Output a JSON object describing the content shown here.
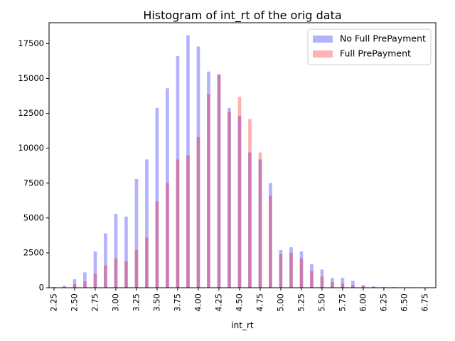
{
  "chart_data": {
    "type": "bar",
    "title": "Histogram of int_rt of the orig data",
    "xlabel": "int_rt",
    "ylabel": "",
    "xlim": [
      2.19,
      6.88
    ],
    "ylim": [
      0,
      19000
    ],
    "xticks": [
      "2.25",
      "2.50",
      "2.75",
      "3.00",
      "3.25",
      "3.50",
      "3.75",
      "4.00",
      "4.25",
      "4.50",
      "4.75",
      "5.00",
      "5.25",
      "5.50",
      "5.75",
      "6.00",
      "6.25",
      "6.50",
      "6.75"
    ],
    "yticks": [
      "0",
      "2500",
      "5000",
      "7500",
      "10000",
      "12500",
      "15000",
      "17500"
    ],
    "bin_width": 0.04,
    "grid": false,
    "legend_position": "top-right",
    "series": [
      {
        "name": "No Full PrePayment",
        "color": "#0000ff",
        "alpha": 0.3,
        "x": [
          2.25,
          2.375,
          2.5,
          2.625,
          2.75,
          2.875,
          3.0,
          3.125,
          3.25,
          3.375,
          3.5,
          3.625,
          3.75,
          3.875,
          4.0,
          4.125,
          4.25,
          4.375,
          4.5,
          4.625,
          4.75,
          4.875,
          5.0,
          5.125,
          5.25,
          5.375,
          5.5,
          5.625,
          5.75,
          5.875,
          6.0,
          6.125,
          6.25,
          6.375,
          6.5,
          6.625,
          6.75
        ],
        "values": [
          50,
          150,
          600,
          1100,
          2600,
          3900,
          5300,
          5100,
          7800,
          9200,
          12900,
          14300,
          16600,
          18100,
          17300,
          15500,
          15300,
          12900,
          12300,
          9700,
          9200,
          7500,
          2700,
          2900,
          2600,
          1700,
          1300,
          700,
          700,
          500,
          200,
          100,
          50,
          50,
          30,
          30,
          20
        ]
      },
      {
        "name": "Full PrePayment",
        "color": "#ff0000",
        "alpha": 0.3,
        "x": [
          2.25,
          2.375,
          2.5,
          2.625,
          2.75,
          2.875,
          3.0,
          3.125,
          3.25,
          3.375,
          3.5,
          3.625,
          3.75,
          3.875,
          4.0,
          4.125,
          4.25,
          4.375,
          4.5,
          4.625,
          4.75,
          4.875,
          5.0,
          5.125,
          5.25,
          5.375,
          5.5,
          5.625,
          5.75,
          5.875,
          6.0,
          6.125,
          6.25,
          6.375,
          6.5,
          6.625,
          6.75
        ],
        "values": [
          20,
          60,
          250,
          450,
          1000,
          1600,
          2100,
          1900,
          2700,
          3600,
          6200,
          7500,
          9200,
          9500,
          10800,
          13900,
          15300,
          12600,
          13700,
          12100,
          9700,
          6600,
          2400,
          2500,
          2100,
          1200,
          800,
          400,
          300,
          200,
          100,
          50,
          20,
          20,
          10,
          10,
          10
        ]
      }
    ]
  }
}
